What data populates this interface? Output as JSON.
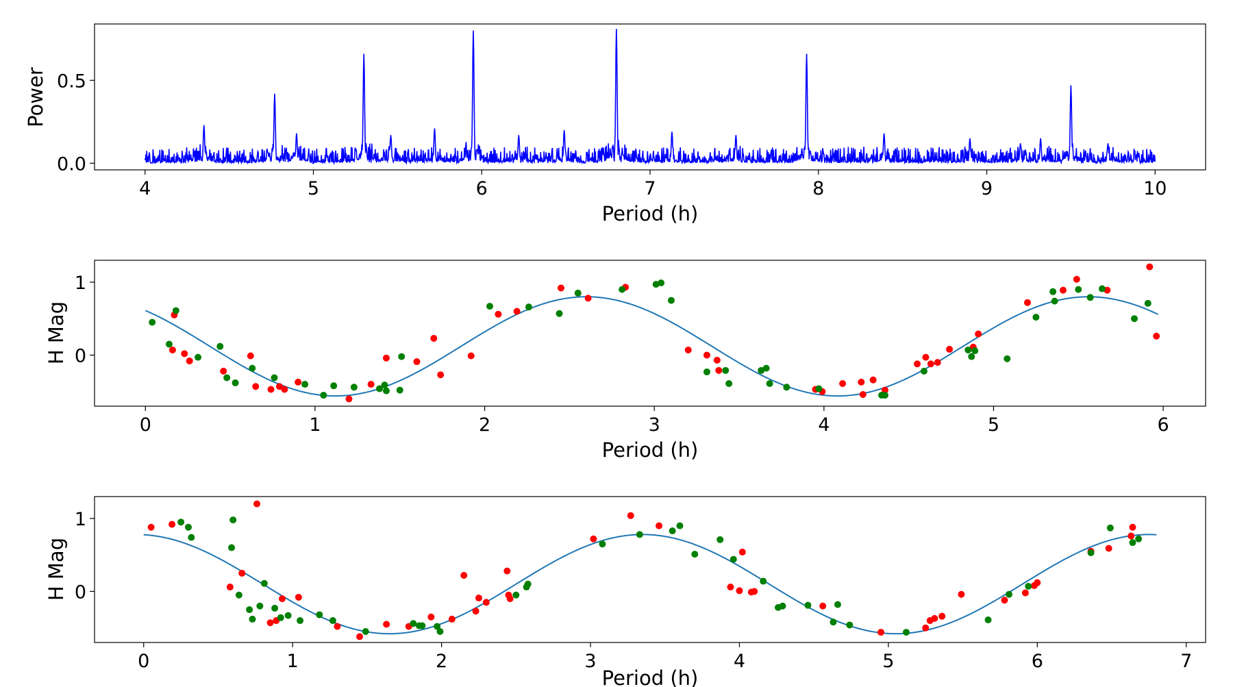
{
  "colors": {
    "periodogram": "#0000ff",
    "fit": "#1f77b4",
    "red": "#ff0000",
    "green": "#008000"
  },
  "chart_data": [
    {
      "type": "line",
      "title": "",
      "xlabel": "Period (h)",
      "ylabel": "Power",
      "xlim": [
        3.7,
        10.3
      ],
      "ylim": [
        -0.04,
        0.84
      ],
      "xticks": [
        4,
        5,
        6,
        7,
        8,
        9,
        10
      ],
      "yticks": [
        0.0,
        0.5
      ],
      "ytick_labels": [
        "0.0",
        "0.5"
      ],
      "noise_floor": 0.02,
      "peaks": [
        {
          "x": 4.35,
          "y": 0.23
        },
        {
          "x": 4.77,
          "y": 0.42
        },
        {
          "x": 4.9,
          "y": 0.18
        },
        {
          "x": 5.3,
          "y": 0.66
        },
        {
          "x": 5.46,
          "y": 0.17
        },
        {
          "x": 5.72,
          "y": 0.21
        },
        {
          "x": 5.95,
          "y": 0.8
        },
        {
          "x": 6.22,
          "y": 0.17
        },
        {
          "x": 6.49,
          "y": 0.2
        },
        {
          "x": 6.8,
          "y": 0.81
        },
        {
          "x": 7.13,
          "y": 0.19
        },
        {
          "x": 7.51,
          "y": 0.17
        },
        {
          "x": 7.93,
          "y": 0.66
        },
        {
          "x": 8.39,
          "y": 0.18
        },
        {
          "x": 8.9,
          "y": 0.15
        },
        {
          "x": 9.2,
          "y": 0.12
        },
        {
          "x": 9.32,
          "y": 0.15
        },
        {
          "x": 9.5,
          "y": 0.47
        },
        {
          "x": 9.72,
          "y": 0.12
        }
      ]
    },
    {
      "type": "scatter",
      "title": "",
      "xlabel": "Period (h)",
      "ylabel": "H Mag",
      "xlim": [
        -0.3,
        6.25
      ],
      "ylim": [
        -0.7,
        1.3
      ],
      "xticks": [
        0,
        1,
        2,
        3,
        4,
        5,
        6
      ],
      "yticks": [
        0,
        1
      ],
      "fit": {
        "mean": 0.12,
        "amplitude": 0.68,
        "period": 2.96,
        "phase_x": 2.6,
        "x_range": [
          0,
          5.97
        ]
      },
      "series": [
        {
          "name": "red",
          "points": [
            [
              0.17,
              0.55
            ],
            [
              0.16,
              0.07
            ],
            [
              0.23,
              0.02
            ],
            [
              0.26,
              -0.08
            ],
            [
              0.46,
              -0.22
            ],
            [
              0.62,
              -0.01
            ],
            [
              0.65,
              -0.43
            ],
            [
              0.74,
              -0.47
            ],
            [
              0.79,
              -0.43
            ],
            [
              0.82,
              -0.47
            ],
            [
              0.9,
              -0.37
            ],
            [
              1.2,
              -0.6
            ],
            [
              1.33,
              -0.4
            ],
            [
              1.42,
              -0.04
            ],
            [
              1.6,
              -0.09
            ],
            [
              1.7,
              0.23
            ],
            [
              1.74,
              -0.27
            ],
            [
              1.92,
              -0.01
            ],
            [
              2.08,
              0.56
            ],
            [
              2.19,
              0.6
            ],
            [
              2.45,
              0.92
            ],
            [
              2.61,
              0.78
            ],
            [
              2.83,
              0.93
            ],
            [
              3.2,
              0.07
            ],
            [
              3.31,
              0.0
            ],
            [
              3.37,
              -0.07
            ],
            [
              3.38,
              -0.21
            ],
            [
              3.95,
              -0.47
            ],
            [
              3.99,
              -0.5
            ],
            [
              4.11,
              -0.39
            ],
            [
              4.22,
              -0.37
            ],
            [
              4.23,
              -0.54
            ],
            [
              4.29,
              -0.34
            ],
            [
              4.36,
              -0.48
            ],
            [
              4.55,
              -0.12
            ],
            [
              4.6,
              -0.03
            ],
            [
              4.63,
              -0.12
            ],
            [
              4.67,
              -0.1
            ],
            [
              4.74,
              0.08
            ],
            [
              4.88,
              0.11
            ],
            [
              4.91,
              0.29
            ],
            [
              5.2,
              0.72
            ],
            [
              5.41,
              0.89
            ],
            [
              5.49,
              1.04
            ],
            [
              5.67,
              0.89
            ],
            [
              5.92,
              1.21
            ],
            [
              5.96,
              0.26
            ]
          ]
        },
        {
          "name": "green",
          "points": [
            [
              0.04,
              0.45
            ],
            [
              0.18,
              0.61
            ],
            [
              0.14,
              0.15
            ],
            [
              0.31,
              -0.03
            ],
            [
              0.44,
              0.12
            ],
            [
              0.48,
              -0.31
            ],
            [
              0.53,
              -0.38
            ],
            [
              0.63,
              -0.18
            ],
            [
              0.76,
              -0.31
            ],
            [
              0.94,
              -0.4
            ],
            [
              1.05,
              -0.55
            ],
            [
              1.11,
              -0.42
            ],
            [
              1.23,
              -0.44
            ],
            [
              1.38,
              -0.46
            ],
            [
              1.41,
              -0.41
            ],
            [
              1.42,
              -0.49
            ],
            [
              1.5,
              -0.48
            ],
            [
              1.51,
              -0.02
            ],
            [
              2.03,
              0.67
            ],
            [
              2.26,
              0.66
            ],
            [
              2.44,
              0.57
            ],
            [
              2.55,
              0.85
            ],
            [
              2.81,
              0.9
            ],
            [
              3.01,
              0.97
            ],
            [
              3.04,
              0.99
            ],
            [
              3.1,
              0.75
            ],
            [
              3.31,
              -0.23
            ],
            [
              3.42,
              -0.21
            ],
            [
              3.44,
              -0.39
            ],
            [
              3.63,
              -0.21
            ],
            [
              3.66,
              -0.18
            ],
            [
              3.68,
              -0.39
            ],
            [
              3.78,
              -0.44
            ],
            [
              3.97,
              -0.46
            ],
            [
              4.34,
              -0.55
            ],
            [
              4.36,
              -0.55
            ],
            [
              4.59,
              -0.22
            ],
            [
              4.85,
              0.07
            ],
            [
              4.87,
              -0.02
            ],
            [
              4.89,
              0.06
            ],
            [
              5.08,
              -0.05
            ],
            [
              5.25,
              0.52
            ],
            [
              5.35,
              0.87
            ],
            [
              5.36,
              0.74
            ],
            [
              5.5,
              0.9
            ],
            [
              5.57,
              0.79
            ],
            [
              5.64,
              0.91
            ],
            [
              5.83,
              0.5
            ],
            [
              5.91,
              0.71
            ]
          ]
        }
      ]
    },
    {
      "type": "scatter",
      "title": "",
      "xlabel": "Period (h)",
      "ylabel": "H Mag",
      "xlim": [
        -0.33,
        7.13
      ],
      "ylim": [
        -0.7,
        1.3
      ],
      "xticks": [
        0,
        1,
        2,
        3,
        4,
        5,
        6,
        7
      ],
      "yticks": [
        0,
        1
      ],
      "fit": {
        "mean": 0.1,
        "amplitude": 0.68,
        "period": 3.4,
        "phase_x": 3.35,
        "x_range": [
          0,
          6.8
        ]
      },
      "series": [
        {
          "name": "red",
          "points": [
            [
              0.05,
              0.88
            ],
            [
              0.19,
              0.92
            ],
            [
              0.58,
              0.06
            ],
            [
              0.66,
              0.25
            ],
            [
              0.76,
              1.2
            ],
            [
              0.85,
              -0.43
            ],
            [
              0.89,
              -0.4
            ],
            [
              0.93,
              -0.1
            ],
            [
              1.04,
              -0.08
            ],
            [
              1.3,
              -0.48
            ],
            [
              1.45,
              -0.62
            ],
            [
              1.63,
              -0.45
            ],
            [
              1.78,
              -0.48
            ],
            [
              1.93,
              -0.35
            ],
            [
              2.07,
              -0.38
            ],
            [
              2.15,
              0.22
            ],
            [
              2.23,
              -0.27
            ],
            [
              2.25,
              -0.09
            ],
            [
              2.3,
              -0.15
            ],
            [
              2.44,
              0.28
            ],
            [
              2.45,
              -0.05
            ],
            [
              2.46,
              -0.1
            ],
            [
              3.02,
              0.72
            ],
            [
              3.27,
              1.04
            ],
            [
              3.46,
              0.9
            ],
            [
              3.94,
              0.06
            ],
            [
              4.0,
              0.01
            ],
            [
              4.02,
              0.54
            ],
            [
              4.08,
              -0.01
            ],
            [
              4.1,
              0.0
            ],
            [
              4.56,
              -0.2
            ],
            [
              4.95,
              -0.56
            ],
            [
              5.25,
              -0.5
            ],
            [
              5.28,
              -0.4
            ],
            [
              5.31,
              -0.37
            ],
            [
              5.36,
              -0.34
            ],
            [
              5.49,
              -0.04
            ],
            [
              5.78,
              -0.12
            ],
            [
              5.92,
              -0.02
            ],
            [
              5.98,
              0.08
            ],
            [
              6.0,
              0.12
            ],
            [
              6.36,
              0.55
            ],
            [
              6.48,
              0.59
            ],
            [
              6.63,
              0.76
            ],
            [
              6.64,
              0.88
            ]
          ]
        },
        {
          "name": "green",
          "points": [
            [
              0.25,
              0.95
            ],
            [
              0.3,
              0.88
            ],
            [
              0.32,
              0.74
            ],
            [
              0.59,
              0.6
            ],
            [
              0.6,
              0.98
            ],
            [
              0.64,
              -0.05
            ],
            [
              0.71,
              -0.25
            ],
            [
              0.73,
              -0.38
            ],
            [
              0.78,
              -0.2
            ],
            [
              0.81,
              0.11
            ],
            [
              0.88,
              -0.23
            ],
            [
              0.92,
              -0.36
            ],
            [
              0.97,
              -0.33
            ],
            [
              1.05,
              -0.4
            ],
            [
              1.18,
              -0.32
            ],
            [
              1.27,
              -0.4
            ],
            [
              1.49,
              -0.55
            ],
            [
              1.81,
              -0.44
            ],
            [
              1.85,
              -0.47
            ],
            [
              1.87,
              -0.47
            ],
            [
              1.97,
              -0.48
            ],
            [
              1.99,
              -0.55
            ],
            [
              2.5,
              -0.05
            ],
            [
              2.57,
              0.06
            ],
            [
              2.58,
              0.1
            ],
            [
              3.08,
              0.65
            ],
            [
              3.33,
              0.78
            ],
            [
              3.55,
              0.83
            ],
            [
              3.6,
              0.9
            ],
            [
              3.7,
              0.51
            ],
            [
              3.87,
              0.71
            ],
            [
              3.96,
              0.44
            ],
            [
              4.16,
              0.14
            ],
            [
              4.26,
              -0.22
            ],
            [
              4.29,
              -0.2
            ],
            [
              4.46,
              -0.19
            ],
            [
              4.63,
              -0.42
            ],
            [
              4.66,
              -0.18
            ],
            [
              4.74,
              -0.46
            ],
            [
              5.12,
              -0.56
            ],
            [
              5.67,
              -0.39
            ],
            [
              5.81,
              -0.04
            ],
            [
              5.94,
              0.07
            ],
            [
              6.36,
              0.53
            ],
            [
              6.49,
              0.87
            ],
            [
              6.64,
              0.67
            ],
            [
              6.68,
              0.72
            ]
          ]
        }
      ]
    }
  ]
}
